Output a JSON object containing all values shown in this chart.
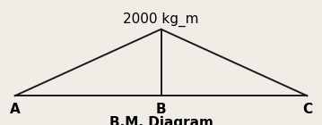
{
  "title": "B.M. Diagram",
  "annotation": "2000 kg_m",
  "A": [
    0.0,
    0.0
  ],
  "B": [
    0.5,
    1.0
  ],
  "C": [
    1.0,
    0.0
  ],
  "line_color": "#1a1a1a",
  "line_width": 1.4,
  "background_color": "#f0ede6",
  "annotation_fontsize": 11,
  "label_fontsize": 11,
  "title_fontsize": 11,
  "xlim": [
    -0.04,
    1.04
  ],
  "ylim": [
    -0.42,
    1.42
  ]
}
